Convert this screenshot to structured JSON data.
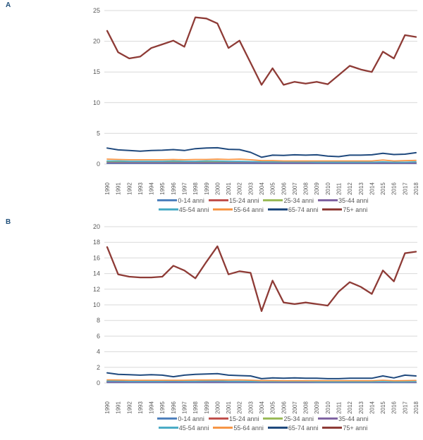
{
  "panels": [
    {
      "label": "A"
    },
    {
      "label": "B"
    }
  ],
  "style": {
    "grid_color": "#D9D9D9",
    "tick_color": "#595959",
    "panel_label_color": "#1F4E79"
  },
  "chart_data": [
    {
      "type": "line",
      "panel": "A",
      "title": "",
      "xlabel": "",
      "ylabel": "",
      "grid": true,
      "legend_position": "bottom",
      "ylim": [
        0,
        25
      ],
      "yticks": [
        0,
        5,
        10,
        15,
        20,
        25
      ],
      "x": [
        "1990",
        "1991",
        "1992",
        "1993",
        "1994",
        "1995",
        "1996",
        "1997",
        "1998",
        "1999",
        "2000",
        "2001",
        "2002",
        "2003",
        "2004",
        "2005",
        "2006",
        "2007",
        "2008",
        "2009",
        "2010",
        "2011",
        "2012",
        "2013",
        "2014",
        "2015",
        "2016",
        "2017",
        "2018"
      ],
      "series": [
        {
          "name": "0-14 anni",
          "color": "#4F81BD",
          "values": [
            0.1,
            0.1,
            0.1,
            0.1,
            0.1,
            0.1,
            0.1,
            0.1,
            0.1,
            0.1,
            0.1,
            0.1,
            0.1,
            0.1,
            0.1,
            0.1,
            0.1,
            0.1,
            0.1,
            0.1,
            0.1,
            0.1,
            0.1,
            0.1,
            0.1,
            0.1,
            0.1,
            0.1,
            0.1
          ]
        },
        {
          "name": "15-24 anni",
          "color": "#C0504D",
          "values": [
            0.4,
            0.4,
            0.35,
            0.35,
            0.35,
            0.35,
            0.35,
            0.3,
            0.3,
            0.3,
            0.35,
            0.3,
            0.3,
            0.3,
            0.25,
            0.25,
            0.25,
            0.25,
            0.25,
            0.25,
            0.2,
            0.2,
            0.25,
            0.2,
            0.2,
            0.25,
            0.2,
            0.2,
            0.25
          ]
        },
        {
          "name": "25-34 anni",
          "color": "#9BBB59",
          "values": [
            0.35,
            0.3,
            0.3,
            0.3,
            0.3,
            0.3,
            0.3,
            0.3,
            0.3,
            0.3,
            0.3,
            0.3,
            0.3,
            0.3,
            0.25,
            0.25,
            0.25,
            0.2,
            0.2,
            0.2,
            0.2,
            0.2,
            0.2,
            0.2,
            0.2,
            0.2,
            0.2,
            0.2,
            0.2
          ]
        },
        {
          "name": "35-44 anni",
          "color": "#8064A2",
          "values": [
            0.2,
            0.2,
            0.2,
            0.2,
            0.2,
            0.2,
            0.2,
            0.2,
            0.2,
            0.2,
            0.2,
            0.2,
            0.2,
            0.2,
            0.15,
            0.15,
            0.15,
            0.15,
            0.15,
            0.15,
            0.15,
            0.15,
            0.15,
            0.15,
            0.15,
            0.15,
            0.15,
            0.15,
            0.15
          ]
        },
        {
          "name": "45-54 anni",
          "color": "#4BACC6",
          "values": [
            0.5,
            0.5,
            0.45,
            0.45,
            0.45,
            0.45,
            0.5,
            0.45,
            0.45,
            0.5,
            0.5,
            0.45,
            0.45,
            0.4,
            0.35,
            0.35,
            0.35,
            0.35,
            0.35,
            0.3,
            0.3,
            0.3,
            0.3,
            0.3,
            0.3,
            0.35,
            0.3,
            0.3,
            0.35
          ]
        },
        {
          "name": "55-64 anni",
          "color": "#F79646",
          "values": [
            0.8,
            0.75,
            0.7,
            0.7,
            0.7,
            0.7,
            0.75,
            0.7,
            0.75,
            0.75,
            0.8,
            0.75,
            0.8,
            0.7,
            0.55,
            0.55,
            0.5,
            0.5,
            0.5,
            0.5,
            0.5,
            0.5,
            0.5,
            0.5,
            0.5,
            0.65,
            0.5,
            0.55,
            0.6
          ]
        },
        {
          "name": "65-74 anni",
          "color": "#1F497D",
          "values": [
            2.6,
            2.3,
            2.2,
            2.1,
            2.2,
            2.25,
            2.35,
            2.2,
            2.5,
            2.6,
            2.65,
            2.4,
            2.35,
            1.9,
            1.1,
            1.45,
            1.4,
            1.5,
            1.45,
            1.5,
            1.3,
            1.2,
            1.45,
            1.45,
            1.5,
            1.75,
            1.55,
            1.6,
            1.85
          ]
        },
        {
          "name": "75+ anni",
          "color": "#8E3B36",
          "values": [
            21.7,
            18.2,
            17.2,
            17.5,
            18.9,
            19.5,
            20.1,
            19.1,
            23.9,
            23.7,
            22.9,
            18.9,
            20.1,
            16.5,
            12.9,
            15.6,
            12.9,
            13.4,
            13.1,
            13.4,
            13.0,
            14.5,
            16.0,
            15.4,
            15.0,
            18.3,
            17.2,
            21.0,
            20.7
          ]
        }
      ]
    },
    {
      "type": "line",
      "panel": "B",
      "title": "",
      "xlabel": "",
      "ylabel": "",
      "grid": true,
      "legend_position": "bottom",
      "ylim": [
        0,
        20
      ],
      "yticks": [
        0,
        2,
        4,
        6,
        8,
        10,
        12,
        14,
        16,
        18,
        20
      ],
      "x": [
        "1990",
        "1991",
        "1992",
        "1993",
        "1994",
        "1995",
        "1996",
        "1997",
        "1998",
        "1999",
        "2000",
        "2001",
        "2002",
        "2003",
        "2004",
        "2005",
        "2006",
        "2007",
        "2008",
        "2009",
        "2010",
        "2011",
        "2012",
        "2013",
        "2014",
        "2015",
        "2016",
        "2017",
        "2018"
      ],
      "series": [
        {
          "name": "0-14 anni",
          "color": "#4F81BD",
          "values": [
            0.05,
            0.05,
            0.05,
            0.05,
            0.05,
            0.05,
            0.05,
            0.05,
            0.05,
            0.05,
            0.05,
            0.05,
            0.05,
            0.05,
            0.05,
            0.05,
            0.05,
            0.05,
            0.05,
            0.05,
            0.05,
            0.05,
            0.05,
            0.05,
            0.05,
            0.05,
            0.05,
            0.05,
            0.05
          ]
        },
        {
          "name": "15-24 anni",
          "color": "#C0504D",
          "values": [
            0.2,
            0.2,
            0.18,
            0.18,
            0.18,
            0.18,
            0.18,
            0.15,
            0.15,
            0.15,
            0.18,
            0.15,
            0.15,
            0.15,
            0.12,
            0.12,
            0.12,
            0.12,
            0.12,
            0.12,
            0.1,
            0.1,
            0.12,
            0.1,
            0.1,
            0.12,
            0.1,
            0.1,
            0.12
          ]
        },
        {
          "name": "25-34 anni",
          "color": "#9BBB59",
          "values": [
            0.15,
            0.15,
            0.15,
            0.15,
            0.15,
            0.15,
            0.15,
            0.15,
            0.15,
            0.15,
            0.15,
            0.15,
            0.15,
            0.15,
            0.12,
            0.12,
            0.12,
            0.1,
            0.1,
            0.1,
            0.1,
            0.1,
            0.1,
            0.1,
            0.1,
            0.1,
            0.1,
            0.1,
            0.1
          ]
        },
        {
          "name": "35-44 anni",
          "color": "#8064A2",
          "values": [
            0.1,
            0.1,
            0.1,
            0.1,
            0.1,
            0.1,
            0.1,
            0.1,
            0.1,
            0.1,
            0.1,
            0.1,
            0.1,
            0.1,
            0.08,
            0.08,
            0.08,
            0.08,
            0.08,
            0.08,
            0.08,
            0.08,
            0.08,
            0.08,
            0.08,
            0.08,
            0.08,
            0.08,
            0.08
          ]
        },
        {
          "name": "45-54 anni",
          "color": "#4BACC6",
          "values": [
            0.25,
            0.25,
            0.22,
            0.22,
            0.22,
            0.22,
            0.25,
            0.22,
            0.22,
            0.25,
            0.25,
            0.22,
            0.22,
            0.2,
            0.18,
            0.18,
            0.18,
            0.18,
            0.18,
            0.15,
            0.15,
            0.15,
            0.15,
            0.15,
            0.15,
            0.18,
            0.15,
            0.15,
            0.18
          ]
        },
        {
          "name": "55-64 anni",
          "color": "#F79646",
          "values": [
            0.4,
            0.38,
            0.35,
            0.35,
            0.35,
            0.35,
            0.35,
            0.35,
            0.38,
            0.38,
            0.4,
            0.38,
            0.4,
            0.35,
            0.3,
            0.3,
            0.28,
            0.28,
            0.28,
            0.28,
            0.28,
            0.28,
            0.28,
            0.28,
            0.28,
            0.35,
            0.28,
            0.3,
            0.32
          ]
        },
        {
          "name": "65-74 anni",
          "color": "#1F497D",
          "values": [
            1.3,
            1.1,
            1.05,
            1.0,
            1.05,
            1.0,
            0.8,
            1.0,
            1.1,
            1.15,
            1.2,
            1.0,
            0.95,
            0.9,
            0.55,
            0.65,
            0.6,
            0.65,
            0.6,
            0.6,
            0.55,
            0.55,
            0.6,
            0.6,
            0.6,
            0.9,
            0.65,
            1.0,
            0.9
          ]
        },
        {
          "name": "75+ anni",
          "color": "#8E3B36",
          "values": [
            17.4,
            13.9,
            13.6,
            13.5,
            13.5,
            13.6,
            15.0,
            14.4,
            13.4,
            15.5,
            17.5,
            13.9,
            14.3,
            14.1,
            9.2,
            13.1,
            10.3,
            10.1,
            10.3,
            10.1,
            9.9,
            11.7,
            12.9,
            12.3,
            11.4,
            14.4,
            13.0,
            16.6,
            16.8
          ]
        }
      ]
    }
  ]
}
